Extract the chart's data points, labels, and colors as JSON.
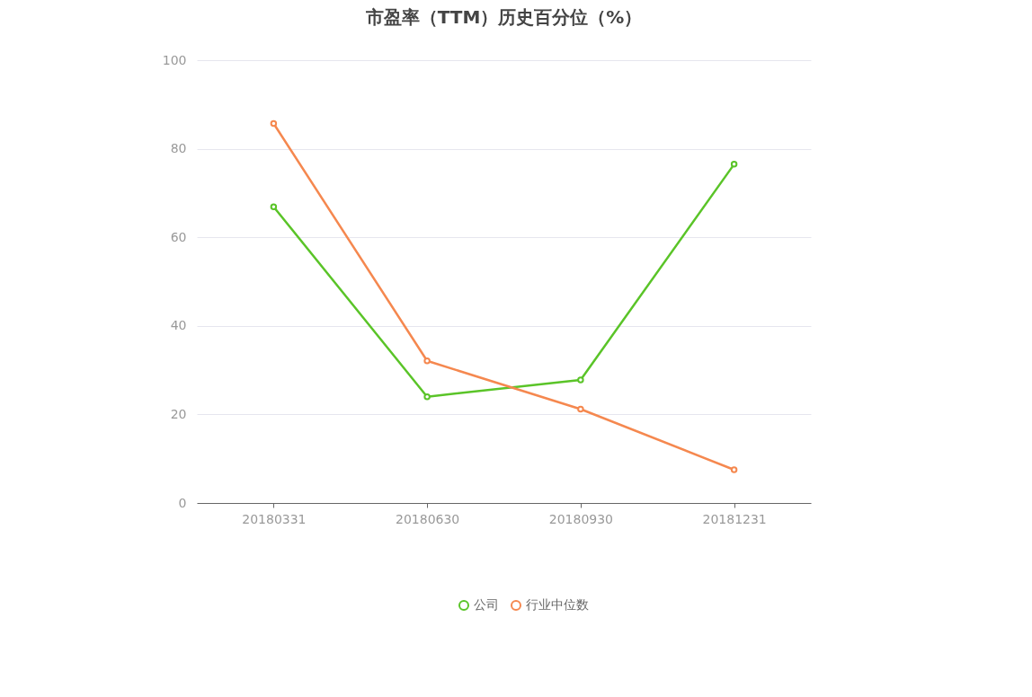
{
  "chart_data": {
    "type": "line",
    "title": "市盈率（TTM）历史百分位（%）",
    "categories": [
      "20180331",
      "20180630",
      "20180930",
      "20181231"
    ],
    "series": [
      {
        "name": "公司",
        "color": "#5ac428",
        "values": [
          66.9,
          24.0,
          27.8,
          76.5
        ]
      },
      {
        "name": "行业中位数",
        "color": "#f5884f",
        "values": [
          85.7,
          32.1,
          21.2,
          7.5
        ]
      }
    ],
    "ylim": [
      0,
      100
    ],
    "yticks": [
      0,
      20,
      40,
      60,
      80,
      100
    ],
    "grid": "y",
    "legend": "bottom",
    "marker": "circle",
    "line_style": "solid"
  }
}
